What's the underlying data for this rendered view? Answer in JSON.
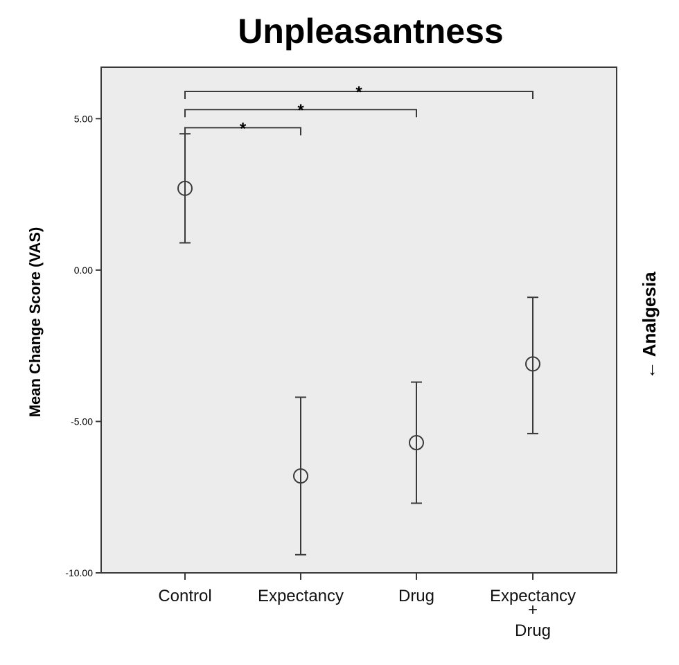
{
  "chart_data": {
    "type": "scatter",
    "title": "Unpleasantness",
    "ylabel": "Mean Change Score (VAS)",
    "side_label": "← Analgesia",
    "ylim": [
      -10,
      6.7
    ],
    "yticks": [
      5,
      0,
      -5,
      -10
    ],
    "ytick_labels": [
      "5.00",
      "0.00",
      "-5.00",
      "-10.00"
    ],
    "categories": [
      [
        "Control"
      ],
      [
        "Expectancy"
      ],
      [
        "Drug"
      ],
      [
        "Expectancy",
        "+",
        "Drug"
      ]
    ],
    "points": [
      {
        "mean": 2.7,
        "lower": 0.9,
        "upper": 4.5
      },
      {
        "mean": -6.8,
        "lower": -9.4,
        "upper": -4.2
      },
      {
        "mean": -5.7,
        "lower": -7.7,
        "upper": -3.7
      },
      {
        "mean": -3.1,
        "lower": -5.4,
        "upper": -0.9
      }
    ],
    "comparisons": [
      {
        "from": 0,
        "to": 1,
        "y": 4.7,
        "label": "*"
      },
      {
        "from": 0,
        "to": 2,
        "y": 5.3,
        "label": "*"
      },
      {
        "from": 0,
        "to": 3,
        "y": 5.9,
        "label": "*"
      }
    ],
    "colors": {
      "background": "#ececec",
      "marks": "#3a3a3a"
    }
  }
}
